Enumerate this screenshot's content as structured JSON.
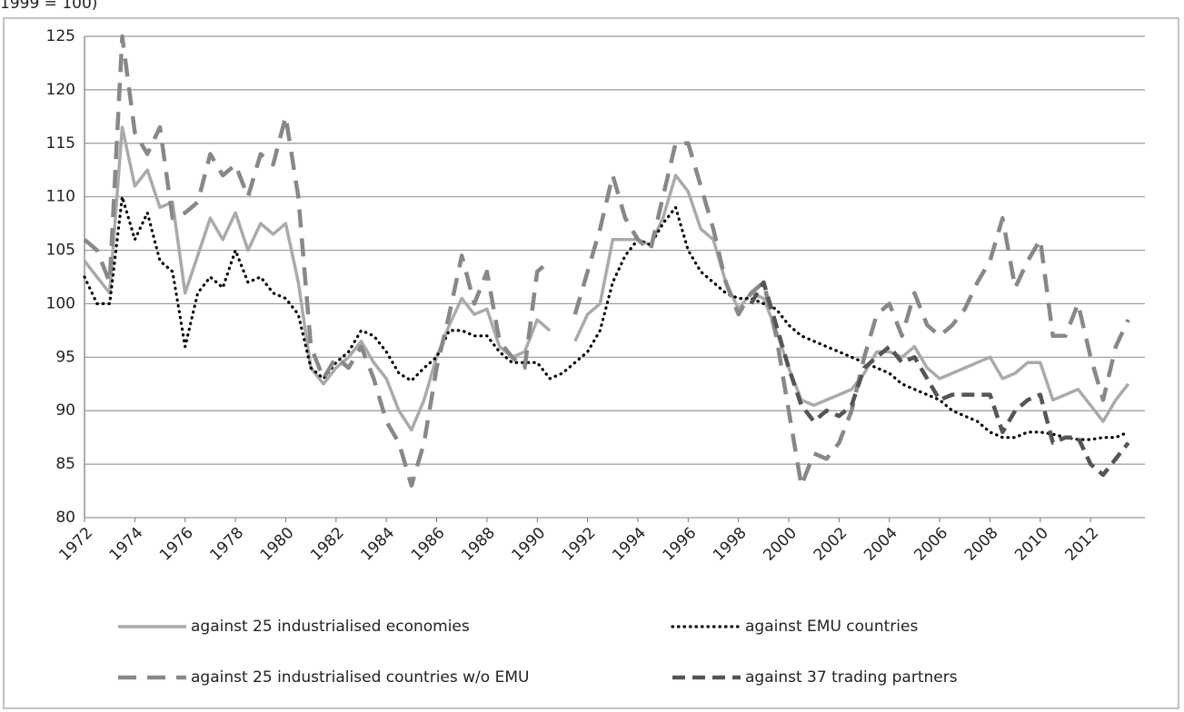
{
  "chart_data": {
    "type": "line",
    "subtitle": "1999 = 100)",
    "categories": [
      "1972",
      null,
      null,
      null,
      "1974",
      null,
      null,
      null,
      "1976",
      null,
      null,
      null,
      "1978",
      null,
      null,
      null,
      "1980",
      null,
      null,
      null,
      "1982",
      null,
      null,
      null,
      "1984",
      null,
      null,
      null,
      "1986",
      null,
      null,
      null,
      "1988",
      null,
      null,
      null,
      "1990",
      null,
      null,
      null,
      "1992",
      null,
      null,
      null,
      "1994",
      null,
      null,
      null,
      "1996",
      null,
      null,
      null,
      "1998",
      null,
      null,
      null,
      "2000",
      null,
      null,
      null,
      "2002",
      null,
      null,
      null,
      "2004",
      null,
      null,
      null,
      "2006",
      null,
      null,
      null,
      "2008",
      null,
      null,
      null,
      "2010",
      null,
      null,
      null,
      "2012",
      null,
      null,
      null
    ],
    "series": [
      {
        "name": "against 25 industrialised economies",
        "color": "#aaaaaa",
        "dash": "solid",
        "values": [
          104,
          102.5,
          101,
          116.5,
          111,
          112.5,
          109,
          109.5,
          101,
          104.5,
          108,
          106,
          108.5,
          105,
          107.5,
          106.5,
          107.5,
          102,
          94,
          92.5,
          94,
          95,
          96.5,
          94.5,
          93,
          90,
          88.2,
          91,
          95,
          98,
          100.5,
          99,
          99.5,
          96,
          95,
          95.5,
          98.5,
          97.5,
          null,
          96.5,
          99,
          100,
          106,
          106,
          106,
          105.5,
          108,
          112,
          110.5,
          107,
          106,
          102,
          99.5,
          101,
          100.5,
          97.5,
          94,
          91,
          90.5,
          91,
          91.5,
          92,
          93.5,
          95.5,
          95.5,
          95,
          96,
          94,
          93,
          93.5,
          94,
          94.5,
          95,
          93,
          93.5,
          94.5,
          94.5,
          91,
          91.5,
          92,
          90.5,
          89,
          91,
          92.5
        ]
      },
      {
        "name": "against EMU countries",
        "color": "#000000",
        "dash": "dotted",
        "values": [
          102.5,
          100,
          100,
          110,
          106,
          108.5,
          104,
          103,
          96,
          101,
          102.5,
          101.5,
          105,
          102,
          102.5,
          101,
          100.5,
          99,
          94,
          93,
          94.5,
          95.5,
          97.5,
          97,
          95.5,
          93.5,
          92.8,
          94,
          95,
          97.5,
          97.5,
          97,
          97,
          95.5,
          94.5,
          94.5,
          94.5,
          93,
          93.5,
          94.5,
          95.5,
          97.5,
          102,
          104.5,
          106,
          105.5,
          107.5,
          109,
          105,
          103,
          102,
          101,
          100.5,
          100.5,
          100,
          99.5,
          98,
          97,
          96.5,
          96,
          95.5,
          95,
          94.5,
          94,
          93.5,
          92.5,
          92,
          91.5,
          91,
          90,
          89.5,
          89,
          88,
          87.5,
          87.5,
          88,
          88,
          87.8,
          87.5,
          87.3,
          87.3,
          87.5,
          87.5,
          88
        ]
      },
      {
        "name": "against 25 industrialised countries w/o EMU",
        "color": "#888888",
        "dash": "dashed",
        "values": [
          106,
          105,
          102,
          125,
          116,
          114,
          116.5,
          108,
          108.5,
          109.5,
          114,
          112,
          113,
          110,
          114,
          113,
          117.5,
          110,
          96,
          93,
          95,
          94,
          96,
          93,
          89,
          87,
          83,
          87,
          94,
          99,
          104.5,
          100,
          103,
          96.5,
          95,
          94,
          103,
          104,
          null,
          99,
          103,
          107,
          112,
          108,
          106,
          105,
          110,
          115,
          115,
          111,
          107,
          102,
          99,
          101,
          102,
          97,
          90,
          83,
          86,
          85.5,
          87,
          90,
          95,
          99,
          100,
          97,
          101,
          98,
          97,
          98,
          99.5,
          102,
          104,
          108,
          101.5,
          104,
          106,
          97,
          97,
          100,
          95,
          91,
          96,
          98.5
        ]
      },
      {
        "name": "against 37 trading partners",
        "color": "#555555",
        "dash": "dashed2",
        "values": [
          null,
          null,
          null,
          null,
          null,
          null,
          null,
          null,
          null,
          null,
          null,
          null,
          null,
          null,
          null,
          null,
          null,
          null,
          null,
          null,
          null,
          null,
          null,
          null,
          null,
          null,
          null,
          null,
          null,
          null,
          null,
          null,
          null,
          null,
          null,
          null,
          null,
          null,
          null,
          null,
          null,
          null,
          null,
          null,
          null,
          null,
          null,
          null,
          null,
          null,
          null,
          null,
          null,
          100,
          102,
          98,
          94,
          90.5,
          89,
          90,
          89.5,
          90.5,
          94,
          95,
          96,
          94.5,
          95,
          93,
          91,
          91.5,
          91.5,
          91.5,
          91.5,
          88,
          90,
          91,
          91.5,
          87,
          87.5,
          87.5,
          85,
          84,
          85.5,
          87
        ]
      }
    ],
    "ylim": [
      80,
      125
    ],
    "yticks": [
      80,
      85,
      90,
      95,
      100,
      105,
      110,
      115,
      120,
      125
    ],
    "grid": true
  }
}
